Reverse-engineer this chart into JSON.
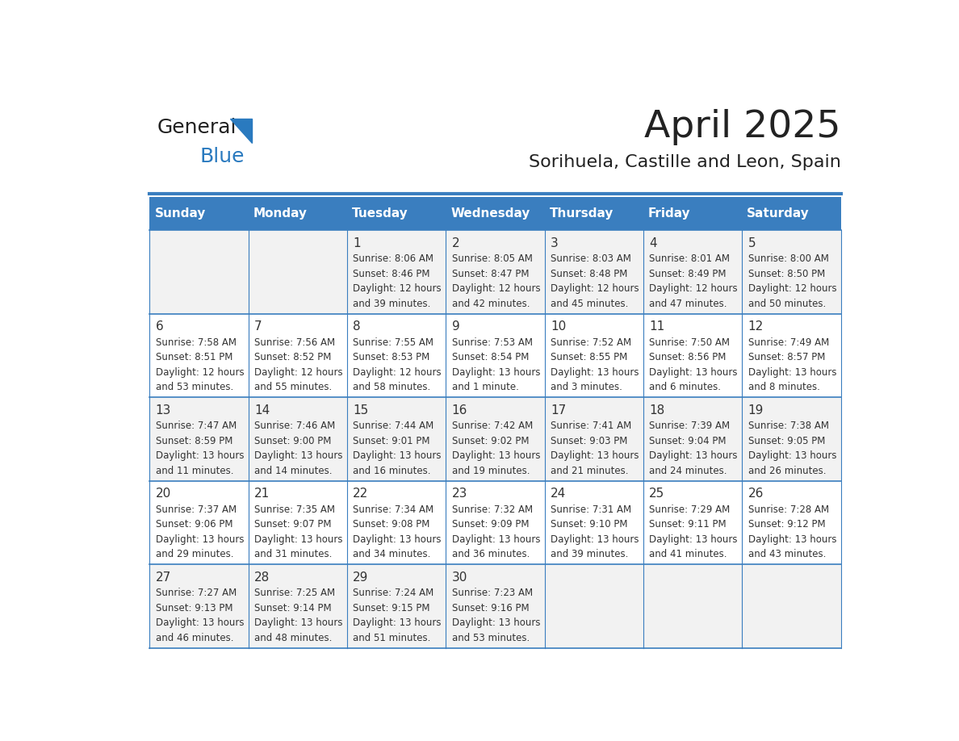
{
  "title": "April 2025",
  "subtitle": "Sorihuela, Castille and Leon, Spain",
  "days_of_week": [
    "Sunday",
    "Monday",
    "Tuesday",
    "Wednesday",
    "Thursday",
    "Friday",
    "Saturday"
  ],
  "header_bg": "#3a7ebf",
  "header_text_color": "#ffffff",
  "row_bg_odd": "#f2f2f2",
  "row_bg_even": "#ffffff",
  "border_color": "#3a7ebf",
  "text_color": "#333333",
  "title_color": "#222222",
  "subtitle_color": "#222222",
  "logo_general_color": "#222222",
  "logo_blue_color": "#2a7abf",
  "cells": [
    {
      "day": 1,
      "col": 2,
      "row": 0,
      "sunrise": "8:06 AM",
      "sunset": "8:46 PM",
      "daylight": "12 hours and 39 minutes."
    },
    {
      "day": 2,
      "col": 3,
      "row": 0,
      "sunrise": "8:05 AM",
      "sunset": "8:47 PM",
      "daylight": "12 hours and 42 minutes."
    },
    {
      "day": 3,
      "col": 4,
      "row": 0,
      "sunrise": "8:03 AM",
      "sunset": "8:48 PM",
      "daylight": "12 hours and 45 minutes."
    },
    {
      "day": 4,
      "col": 5,
      "row": 0,
      "sunrise": "8:01 AM",
      "sunset": "8:49 PM",
      "daylight": "12 hours and 47 minutes."
    },
    {
      "day": 5,
      "col": 6,
      "row": 0,
      "sunrise": "8:00 AM",
      "sunset": "8:50 PM",
      "daylight": "12 hours and 50 minutes."
    },
    {
      "day": 6,
      "col": 0,
      "row": 1,
      "sunrise": "7:58 AM",
      "sunset": "8:51 PM",
      "daylight": "12 hours and 53 minutes."
    },
    {
      "day": 7,
      "col": 1,
      "row": 1,
      "sunrise": "7:56 AM",
      "sunset": "8:52 PM",
      "daylight": "12 hours and 55 minutes."
    },
    {
      "day": 8,
      "col": 2,
      "row": 1,
      "sunrise": "7:55 AM",
      "sunset": "8:53 PM",
      "daylight": "12 hours and 58 minutes."
    },
    {
      "day": 9,
      "col": 3,
      "row": 1,
      "sunrise": "7:53 AM",
      "sunset": "8:54 PM",
      "daylight": "13 hours and 1 minute."
    },
    {
      "day": 10,
      "col": 4,
      "row": 1,
      "sunrise": "7:52 AM",
      "sunset": "8:55 PM",
      "daylight": "13 hours and 3 minutes."
    },
    {
      "day": 11,
      "col": 5,
      "row": 1,
      "sunrise": "7:50 AM",
      "sunset": "8:56 PM",
      "daylight": "13 hours and 6 minutes."
    },
    {
      "day": 12,
      "col": 6,
      "row": 1,
      "sunrise": "7:49 AM",
      "sunset": "8:57 PM",
      "daylight": "13 hours and 8 minutes."
    },
    {
      "day": 13,
      "col": 0,
      "row": 2,
      "sunrise": "7:47 AM",
      "sunset": "8:59 PM",
      "daylight": "13 hours and 11 minutes."
    },
    {
      "day": 14,
      "col": 1,
      "row": 2,
      "sunrise": "7:46 AM",
      "sunset": "9:00 PM",
      "daylight": "13 hours and 14 minutes."
    },
    {
      "day": 15,
      "col": 2,
      "row": 2,
      "sunrise": "7:44 AM",
      "sunset": "9:01 PM",
      "daylight": "13 hours and 16 minutes."
    },
    {
      "day": 16,
      "col": 3,
      "row": 2,
      "sunrise": "7:42 AM",
      "sunset": "9:02 PM",
      "daylight": "13 hours and 19 minutes."
    },
    {
      "day": 17,
      "col": 4,
      "row": 2,
      "sunrise": "7:41 AM",
      "sunset": "9:03 PM",
      "daylight": "13 hours and 21 minutes."
    },
    {
      "day": 18,
      "col": 5,
      "row": 2,
      "sunrise": "7:39 AM",
      "sunset": "9:04 PM",
      "daylight": "13 hours and 24 minutes."
    },
    {
      "day": 19,
      "col": 6,
      "row": 2,
      "sunrise": "7:38 AM",
      "sunset": "9:05 PM",
      "daylight": "13 hours and 26 minutes."
    },
    {
      "day": 20,
      "col": 0,
      "row": 3,
      "sunrise": "7:37 AM",
      "sunset": "9:06 PM",
      "daylight": "13 hours and 29 minutes."
    },
    {
      "day": 21,
      "col": 1,
      "row": 3,
      "sunrise": "7:35 AM",
      "sunset": "9:07 PM",
      "daylight": "13 hours and 31 minutes."
    },
    {
      "day": 22,
      "col": 2,
      "row": 3,
      "sunrise": "7:34 AM",
      "sunset": "9:08 PM",
      "daylight": "13 hours and 34 minutes."
    },
    {
      "day": 23,
      "col": 3,
      "row": 3,
      "sunrise": "7:32 AM",
      "sunset": "9:09 PM",
      "daylight": "13 hours and 36 minutes."
    },
    {
      "day": 24,
      "col": 4,
      "row": 3,
      "sunrise": "7:31 AM",
      "sunset": "9:10 PM",
      "daylight": "13 hours and 39 minutes."
    },
    {
      "day": 25,
      "col": 5,
      "row": 3,
      "sunrise": "7:29 AM",
      "sunset": "9:11 PM",
      "daylight": "13 hours and 41 minutes."
    },
    {
      "day": 26,
      "col": 6,
      "row": 3,
      "sunrise": "7:28 AM",
      "sunset": "9:12 PM",
      "daylight": "13 hours and 43 minutes."
    },
    {
      "day": 27,
      "col": 0,
      "row": 4,
      "sunrise": "7:27 AM",
      "sunset": "9:13 PM",
      "daylight": "13 hours and 46 minutes."
    },
    {
      "day": 28,
      "col": 1,
      "row": 4,
      "sunrise": "7:25 AM",
      "sunset": "9:14 PM",
      "daylight": "13 hours and 48 minutes."
    },
    {
      "day": 29,
      "col": 2,
      "row": 4,
      "sunrise": "7:24 AM",
      "sunset": "9:15 PM",
      "daylight": "13 hours and 51 minutes."
    },
    {
      "day": 30,
      "col": 3,
      "row": 4,
      "sunrise": "7:23 AM",
      "sunset": "9:16 PM",
      "daylight": "13 hours and 53 minutes."
    }
  ]
}
